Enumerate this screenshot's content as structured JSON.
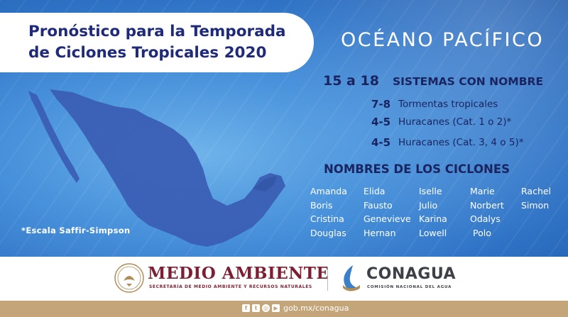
{
  "title": {
    "line1": "Pronóstico para la Temporada",
    "line2": "de Ciclones Tropicales 2020"
  },
  "ocean": "OCÉANO PACÍFICO",
  "summary": {
    "total": "15 a 18",
    "total_label": "SISTEMAS CON NOMBRE",
    "rows": [
      {
        "count": "7-8",
        "label": "Tormentas tropicales"
      },
      {
        "count": "4-5",
        "label": "Huracanes (Cat. 1 o 2)*"
      },
      {
        "count": "4-5",
        "label": "Huracanes (Cat. 3, 4 o 5)*"
      }
    ]
  },
  "names_title": "NOMBRES DE LOS CICLONES",
  "names": [
    [
      "Amanda",
      "Boris",
      "Cristina",
      "Douglas"
    ],
    [
      "Elida",
      "Fausto",
      "Genevieve",
      "Hernan"
    ],
    [
      "Iselle",
      "Julio",
      "Karina",
      "Lowell"
    ],
    [
      "Marie",
      "Norbert",
      "Odalys",
      "Polo"
    ],
    [
      "Rachel",
      "Simon"
    ]
  ],
  "note": "*Escala Saffir-Simpson",
  "logos": {
    "semarnat_title": "MEDIO AMBIENTE",
    "semarnat_subtitle": "SECRETARÍA DE MEDIO AMBIENTE Y RECURSOS NATURALES",
    "conagua_title": "CONAGUA",
    "conagua_subtitle": "COMISIÓN NACIONAL DEL AGUA"
  },
  "footer": {
    "social_icons": [
      "facebook-icon",
      "twitter-icon",
      "instagram-icon",
      "youtube-icon"
    ],
    "url": "gob.mx/conagua"
  },
  "colors": {
    "title_navy": "#1f2a7a",
    "ocean_blue": "#2f73c6",
    "map_blue": "#3a5fb4",
    "semarnat_maroon": "#7d1f33",
    "footer_gold": "#c4a57a"
  }
}
